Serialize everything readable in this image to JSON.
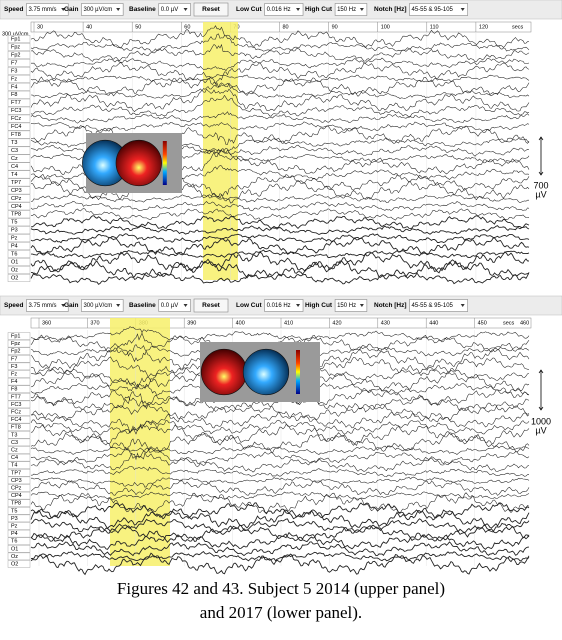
{
  "panels": [
    {
      "toolbar": [
        {
          "label": "Speed",
          "value": "3.75 mm/s"
        },
        {
          "label": "Gain",
          "value": "300 µV/cm"
        },
        {
          "label": "Baseline",
          "value": "0.0 µV"
        },
        {
          "button": "Reset"
        },
        {
          "label": "Low Cut",
          "value": "0.016 Hz"
        },
        {
          "label": "High Cut",
          "value": "150 Hz"
        },
        {
          "label": "Notch [Hz]",
          "value": "45-55 & 95-105"
        }
      ],
      "sensitivity": "300 µV/cm",
      "time_labels": [
        30,
        40,
        50,
        60,
        70,
        80,
        90,
        100,
        110,
        120
      ],
      "time_unit": "secs",
      "channels": [
        "Fp1",
        "Fpz",
        "Fp2",
        "F7",
        "F3",
        "Fz",
        "F4",
        "F8",
        "FT7",
        "FC3",
        "FCz",
        "FC4",
        "FT8",
        "T3",
        "C3",
        "Cz",
        "C4",
        "T4",
        "TP7",
        "CP3",
        "CPz",
        "CP4",
        "TP8",
        "T5",
        "P3",
        "Pz",
        "P4",
        "T6",
        "O1",
        "Oz",
        "O2"
      ],
      "scale": {
        "value": "700",
        "unit": "µV"
      }
    },
    {
      "toolbar": [
        {
          "label": "Speed",
          "value": "3.75 mm/s"
        },
        {
          "label": "Gain",
          "value": "300 µV/cm"
        },
        {
          "label": "Baseline",
          "value": "0.0 µV"
        },
        {
          "button": "Reset"
        },
        {
          "label": "Low Cut",
          "value": "0.016 Hz"
        },
        {
          "label": "High Cut",
          "value": "150 Hz"
        },
        {
          "label": "Notch [Hz]",
          "value": "45-55 & 95-105"
        }
      ],
      "time_labels": [
        360,
        370,
        380,
        390,
        400,
        410,
        420,
        430,
        440,
        450
      ],
      "time_unit": "secs",
      "time_end": 460,
      "channels": [
        "Fp1",
        "Fpz",
        "Fp2",
        "F7",
        "F3",
        "Fz",
        "F4",
        "F8",
        "FT7",
        "FC3",
        "FCz",
        "FC4",
        "FT8",
        "T3",
        "C3",
        "Cz",
        "C4",
        "T4",
        "TP7",
        "CP3",
        "CPz",
        "CP4",
        "TP8",
        "T5",
        "P3",
        "Pz",
        "P4",
        "T6",
        "O1",
        "Oz",
        "O2"
      ],
      "scale": {
        "value": "1000",
        "unit": "µV"
      }
    }
  ],
  "caption": [
    "Figures 42 and 43. Subject 5 2014 (upper panel)",
    "and 2017 (lower panel)."
  ]
}
